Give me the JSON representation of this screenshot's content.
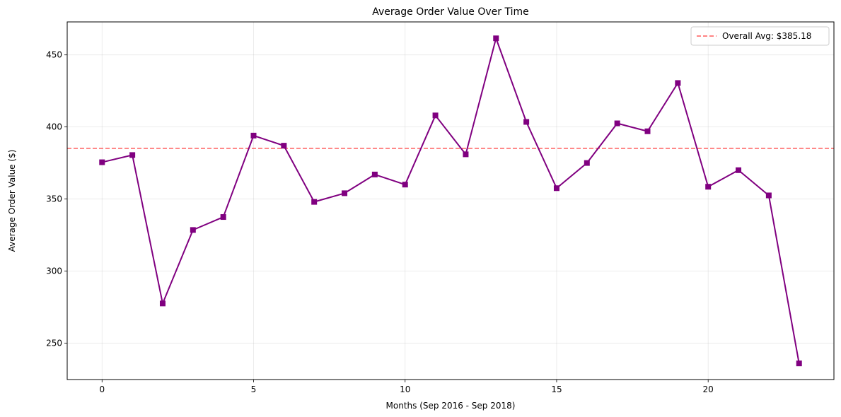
{
  "chart_data": {
    "type": "line",
    "title": "Average Order Value Over Time",
    "xlabel": "Months (Sep 2016 - Sep 2018)",
    "ylabel": "Average Order Value ($)",
    "xlim": [
      -1.15,
      24.15
    ],
    "ylim": [
      224.7,
      472.9
    ],
    "xticks": [
      0,
      5,
      10,
      15,
      20
    ],
    "yticks": [
      250,
      300,
      350,
      400,
      450
    ],
    "grid": true,
    "legend_position": "top-right",
    "series": [
      {
        "name": "",
        "color": "#800080",
        "marker": "square",
        "x": [
          0,
          1,
          2,
          3,
          4,
          5,
          6,
          7,
          8,
          9,
          10,
          11,
          12,
          13,
          14,
          15,
          16,
          17,
          18,
          19,
          20,
          21,
          22,
          23
        ],
        "y": [
          375.5,
          380.5,
          277.5,
          328.5,
          337.5,
          394.0,
          387.0,
          348.0,
          354.0,
          367.0,
          360.0,
          408.0,
          381.0,
          461.5,
          403.5,
          357.5,
          375.0,
          402.5,
          397.0,
          430.5,
          358.5,
          370.0,
          352.5,
          235.9
        ]
      }
    ],
    "reference_lines": [
      {
        "label": "Overall Avg: $385.18",
        "y": 385.18,
        "color": "#ff3333",
        "style": "dashed"
      }
    ]
  }
}
